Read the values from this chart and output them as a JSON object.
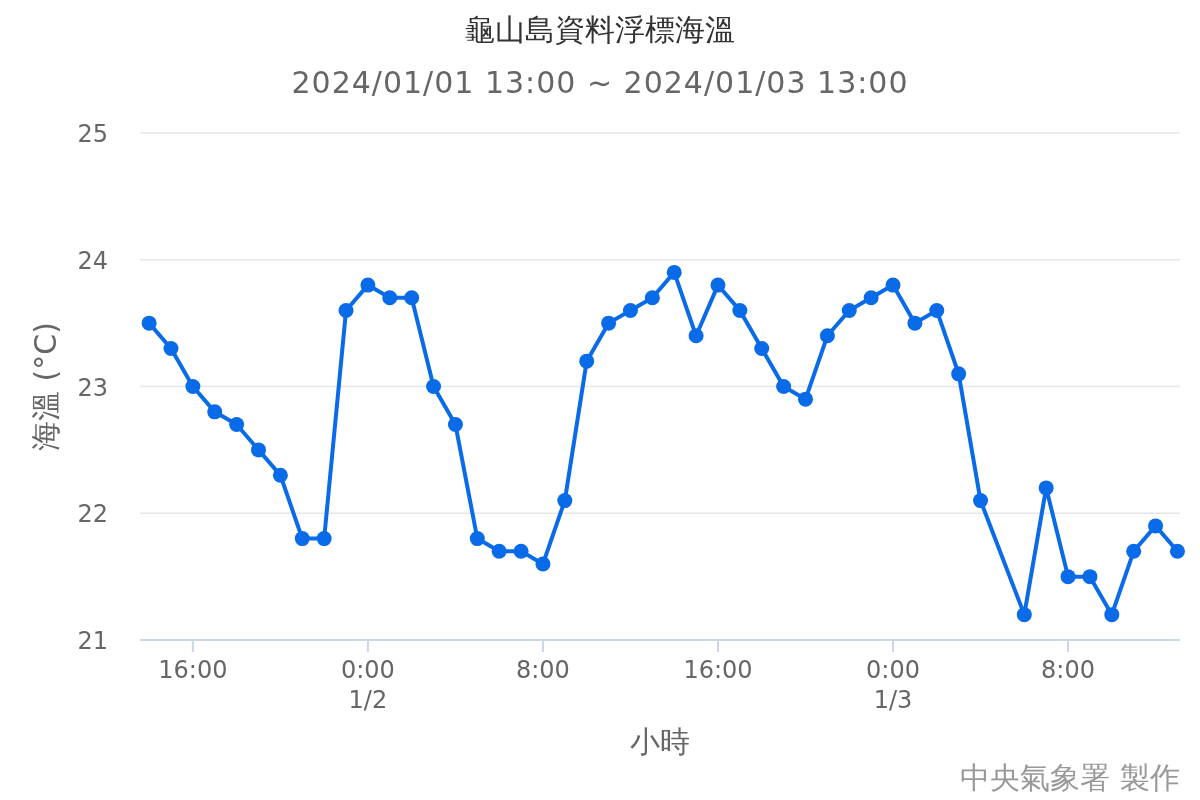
{
  "chart_data": {
    "type": "line",
    "title": "龜山島資料浮標海溫",
    "subtitle": "2024/01/01 13:00 ~ 2024/01/03 13:00",
    "xlabel": "小時",
    "ylabel": "海溫 (°C)",
    "annotations": [
      "中央氣象署 製作"
    ],
    "x": [
      "2024-01-01T14:00",
      "2024-01-01T15:00",
      "2024-01-01T16:00",
      "2024-01-01T17:00",
      "2024-01-01T18:00",
      "2024-01-01T19:00",
      "2024-01-01T20:00",
      "2024-01-01T21:00",
      "2024-01-01T22:00",
      "2024-01-01T23:00",
      "2024-01-02T00:00",
      "2024-01-02T01:00",
      "2024-01-02T02:00",
      "2024-01-02T03:00",
      "2024-01-02T04:00",
      "2024-01-02T05:00",
      "2024-01-02T06:00",
      "2024-01-02T07:00",
      "2024-01-02T08:00",
      "2024-01-02T09:00",
      "2024-01-02T10:00",
      "2024-01-02T11:00",
      "2024-01-02T12:00",
      "2024-01-02T13:00",
      "2024-01-02T14:00",
      "2024-01-02T15:00",
      "2024-01-02T16:00",
      "2024-01-02T17:00",
      "2024-01-02T18:00",
      "2024-01-02T19:00",
      "2024-01-02T20:00",
      "2024-01-02T21:00",
      "2024-01-02T22:00",
      "2024-01-02T23:00",
      "2024-01-03T00:00",
      "2024-01-03T01:00",
      "2024-01-03T02:00",
      "2024-01-03T03:00",
      "2024-01-03T04:00",
      "2024-01-03T06:00",
      "2024-01-03T07:00",
      "2024-01-03T08:00",
      "2024-01-03T09:00",
      "2024-01-03T10:00",
      "2024-01-03T11:00",
      "2024-01-03T12:00",
      "2024-01-03T13:00"
    ],
    "series": [
      {
        "color": "#0a6be8",
        "values": [
          23.5,
          23.3,
          23.0,
          22.8,
          22.7,
          22.5,
          22.3,
          21.8,
          21.8,
          23.6,
          23.8,
          23.7,
          23.7,
          23.0,
          22.7,
          21.8,
          21.7,
          21.7,
          21.6,
          22.1,
          23.2,
          23.5,
          23.6,
          23.7,
          23.9,
          23.4,
          23.8,
          23.6,
          23.3,
          23.0,
          22.9,
          23.4,
          23.6,
          23.7,
          23.8,
          23.5,
          23.6,
          23.1,
          22.1,
          21.2,
          22.2,
          21.5,
          21.5,
          21.2,
          21.7,
          21.9,
          21.7
        ]
      }
    ],
    "xlim": [
      "2024-01-01T13:35",
      "2024-01-03T13:07"
    ],
    "xticks": [
      {
        "value": "2024-01-01T16:00",
        "label": "16:00"
      },
      {
        "value": "2024-01-02T00:00",
        "label": "0:00\n1/2"
      },
      {
        "value": "2024-01-02T08:00",
        "label": "8:00"
      },
      {
        "value": "2024-01-02T16:00",
        "label": "16:00"
      },
      {
        "value": "2024-01-03T00:00",
        "label": "0:00\n1/3"
      },
      {
        "value": "2024-01-03T08:00",
        "label": "8:00"
      }
    ],
    "ylim": [
      21,
      25
    ],
    "yticks": [
      21,
      22,
      23,
      24,
      25
    ],
    "grid": "y",
    "marker": "circle",
    "line_style": "solid"
  }
}
